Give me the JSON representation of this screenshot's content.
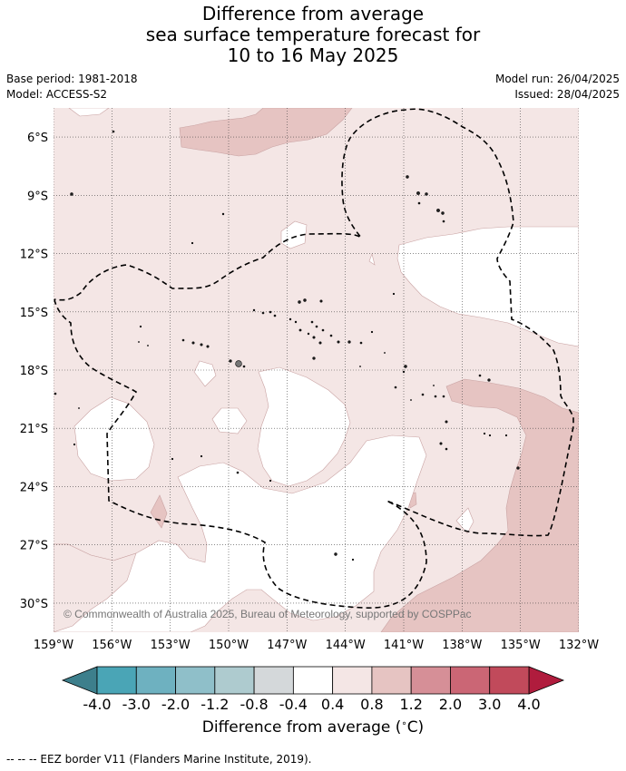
{
  "header": {
    "title_line1": "Difference from average",
    "title_line2": "sea surface temperature forecast for",
    "title_line3": "10 to 16 May 2025",
    "base_period": "Base period: 1981-2018",
    "model": "Model: ACCESS-S2",
    "model_run": "Model run: 26/04/2025",
    "issued": "Issued: 28/04/2025"
  },
  "map": {
    "lon_range": [
      -159,
      -132
    ],
    "lat_range": [
      -31.5,
      -4.5
    ],
    "lat_ticks": [
      {
        "value": -6,
        "label": "6°S"
      },
      {
        "value": -9,
        "label": "9°S"
      },
      {
        "value": -12,
        "label": "12°S"
      },
      {
        "value": -15,
        "label": "15°S"
      },
      {
        "value": -18,
        "label": "18°S"
      },
      {
        "value": -21,
        "label": "21°S"
      },
      {
        "value": -24,
        "label": "24°S"
      },
      {
        "value": -27,
        "label": "27°S"
      },
      {
        "value": -30,
        "label": "30°S"
      }
    ],
    "lon_ticks": [
      {
        "value": -159,
        "label": "159°W"
      },
      {
        "value": -156,
        "label": "156°W"
      },
      {
        "value": -153,
        "label": "153°W"
      },
      {
        "value": -150,
        "label": "150°W"
      },
      {
        "value": -147,
        "label": "147°W"
      },
      {
        "value": -144,
        "label": "144°W"
      },
      {
        "value": -141,
        "label": "141°W"
      },
      {
        "value": -138,
        "label": "138°W"
      },
      {
        "value": -135,
        "label": "135°W"
      },
      {
        "value": -132,
        "label": "132°W"
      }
    ],
    "copyright": "© Commonwealth of Australia 2025, Bureau of Meteorology, supported by COSPPac",
    "background_color": "#f4e6e5"
  },
  "colorbar": {
    "ticks": [
      "-4.0",
      "-3.0",
      "-2.0",
      "-1.2",
      "-0.8",
      "-0.4",
      "0.4",
      "0.8",
      "1.2",
      "2.0",
      "3.0",
      "4.0"
    ],
    "colors": [
      "#4aa5b6",
      "#6eb1c0",
      "#8fbfc9",
      "#aecbcf",
      "#d4d8da",
      "#ffffff",
      "#f4e6e5",
      "#e6c4c2",
      "#d68f97",
      "#cb6675",
      "#c14a5b"
    ],
    "under_color": "#3d7f8c",
    "over_color": "#b01c3d",
    "label": "Difference from average ($^\\circ$C)",
    "label_text": "Difference from average (",
    "label_unit": "C)"
  },
  "footnote": "--  --  -- EEZ border V11 (Flanders Marine Institute, 2019)."
}
